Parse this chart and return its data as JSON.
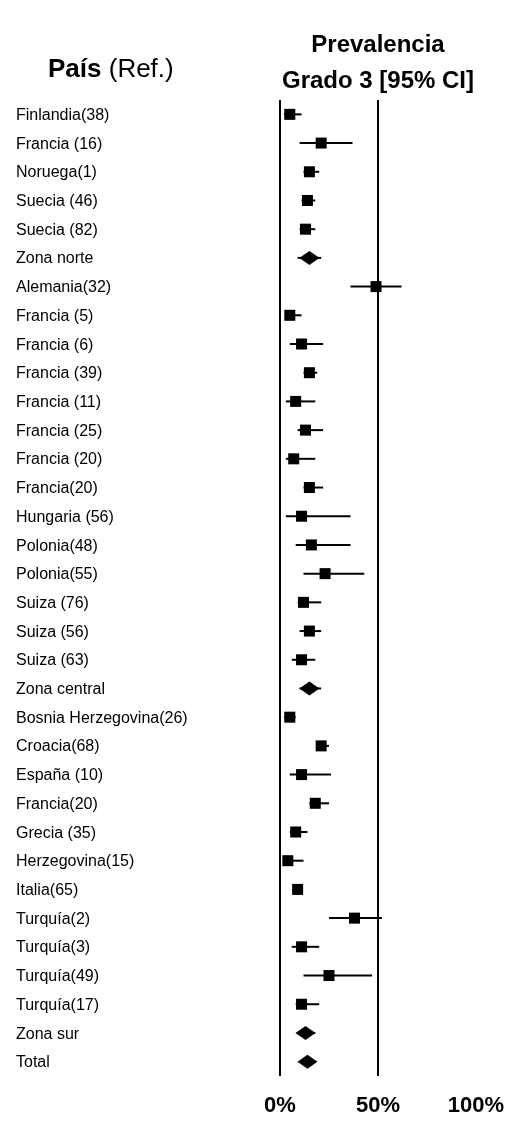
{
  "chart_data": {
    "type": "scatter",
    "orientation": "horizontal",
    "title": "Prevalencia\nGrado 3 [95% CI]",
    "ylabel": "País (Ref.)",
    "categories": [
      "Finlandia(38)",
      "Francia (16)",
      "Noruega(1)",
      "Suecia (46)",
      "Suecia (82)",
      "Zona norte",
      "Alemania(32)",
      "Francia (5)",
      "Francia (6)",
      "Francia (39)",
      "Francia (11)",
      "Francia (25)",
      "Francia (20)",
      "Francia(20)",
      "Hungaria (56)",
      "Polonia(48)",
      "Polonia(55)",
      "Suiza (76)",
      "Suiza (56)",
      "Suiza (63)",
      "Zona central",
      "Bosnia Herzegovina(26)",
      "Croacia(68)",
      "España (10)",
      "Francia(20)",
      "Grecia (35)",
      "Herzegovina(15)",
      "Italia(65)",
      "Turquía(2)",
      "Turquía(3)",
      "Turquía(49)",
      "Turquía(17)",
      "Zona sur",
      "Total"
    ],
    "series": [
      {
        "color": "#000000",
        "marker": "square",
        "values": [
          5,
          21,
          15,
          14,
          13,
          null,
          49,
          5,
          11,
          15,
          8,
          13,
          7,
          15,
          11,
          16,
          23,
          12,
          15,
          11,
          null,
          5,
          21,
          11,
          18,
          8,
          4,
          9,
          38,
          11,
          25,
          11,
          null,
          null
        ],
        "errors": [
          [
            2,
            11
          ],
          [
            10,
            37
          ],
          [
            12,
            20
          ],
          [
            11,
            18
          ],
          [
            10,
            18
          ],
          null,
          [
            36,
            62
          ],
          [
            3,
            11
          ],
          [
            5,
            22
          ],
          [
            12,
            19
          ],
          [
            3,
            18
          ],
          [
            9,
            22
          ],
          [
            3,
            18
          ],
          [
            12,
            22
          ],
          [
            3,
            36
          ],
          [
            8,
            36
          ],
          [
            12,
            43
          ],
          [
            9,
            21
          ],
          [
            10,
            21
          ],
          [
            6,
            18
          ],
          null,
          [
            2,
            8
          ],
          [
            19,
            25
          ],
          [
            5,
            26
          ],
          [
            15,
            25
          ],
          [
            5,
            14
          ],
          [
            2,
            12
          ],
          [
            7,
            11
          ],
          [
            25,
            52
          ],
          [
            6,
            20
          ],
          [
            12,
            47
          ],
          [
            8,
            20
          ],
          null,
          null
        ]
      },
      {
        "color": "#000000",
        "marker": "diamond",
        "values": [
          null,
          null,
          null,
          null,
          null,
          15,
          null,
          null,
          null,
          null,
          null,
          null,
          null,
          null,
          null,
          null,
          null,
          null,
          null,
          null,
          15,
          null,
          null,
          null,
          null,
          null,
          null,
          null,
          null,
          null,
          null,
          null,
          13,
          14
        ],
        "errors": [
          null,
          null,
          null,
          null,
          null,
          [
            9,
            21
          ],
          null,
          null,
          null,
          null,
          null,
          null,
          null,
          null,
          null,
          null,
          null,
          null,
          null,
          null,
          [
            10,
            21
          ],
          null,
          null,
          null,
          null,
          null,
          null,
          null,
          null,
          null,
          null,
          null,
          [
            9,
            18
          ],
          [
            11,
            18
          ]
        ]
      }
    ],
    "xlim": [
      0,
      100
    ],
    "xticks": [
      {
        "value": 0,
        "label": "0%"
      },
      {
        "value": 50,
        "label": "50%"
      },
      {
        "value": 100,
        "label": "100%"
      }
    ],
    "ref_lines": [
      {
        "axis": "x",
        "value": 50,
        "color": "#000000"
      }
    ]
  }
}
